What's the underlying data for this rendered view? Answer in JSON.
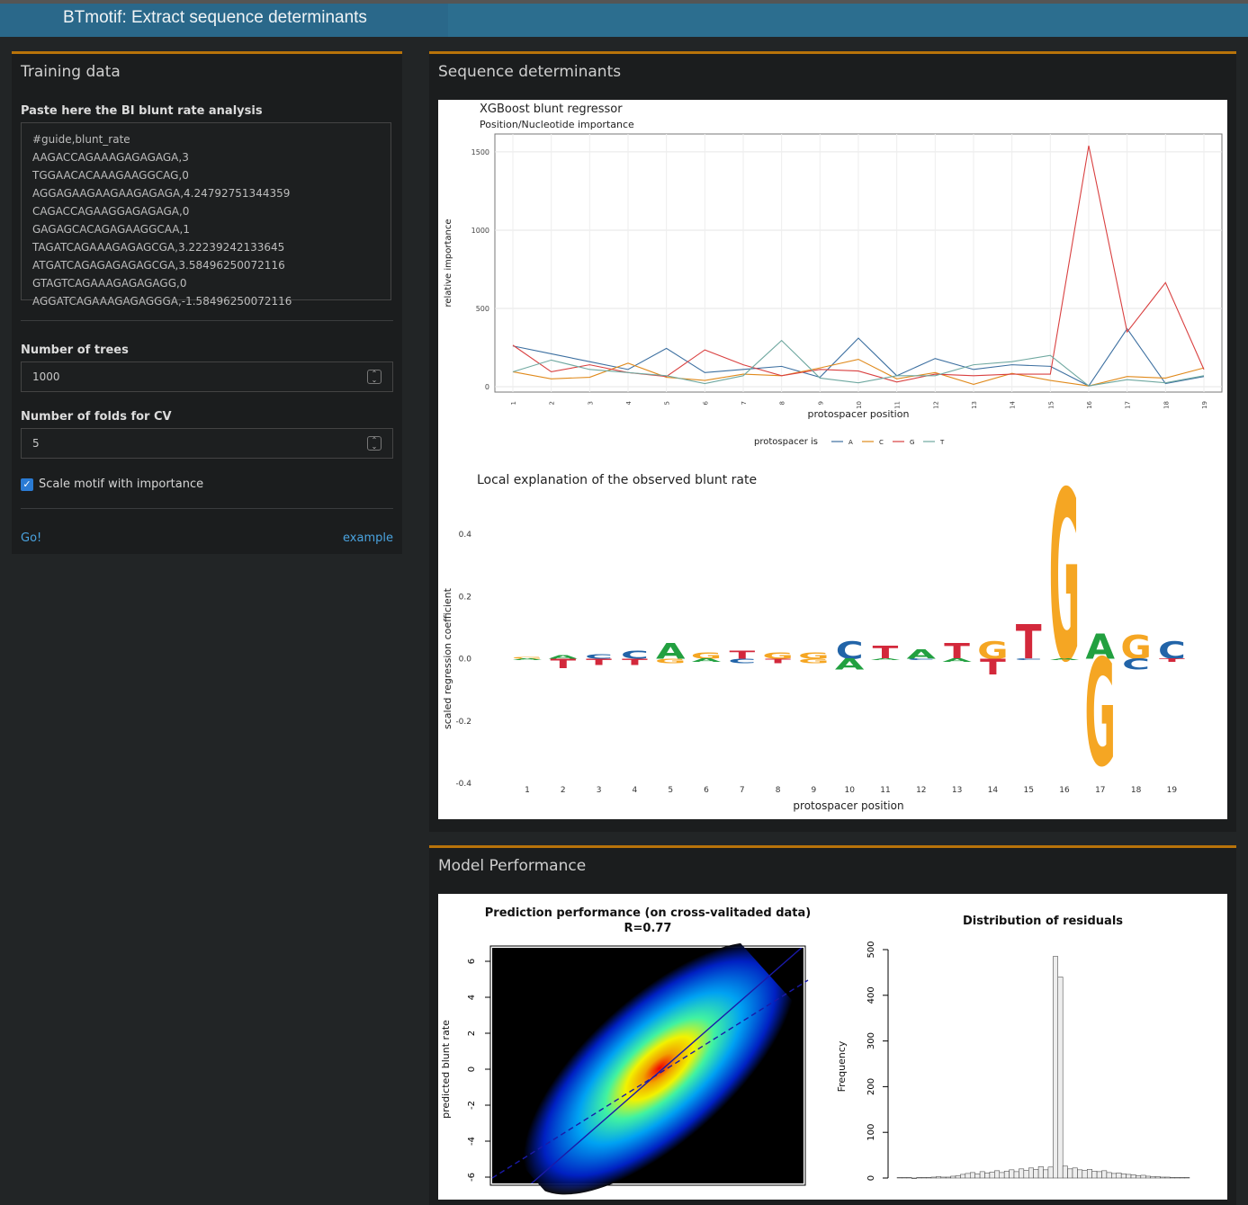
{
  "app": {
    "title": "BTmotif: Extract sequence determinants"
  },
  "sidebar": {
    "title": "Training data",
    "paste_label": "Paste here the BI blunt rate analysis",
    "textarea_lines": [
      "#guide,blunt_rate",
      "AAGACCAGAAAGAGAGAGA,3",
      "TGGAACACAAAGAAGGCAG,0",
      "AGGAGAAGAAGAAGAGAGA,4.24792751344359",
      "CAGACCAGAAGGAGAGAGA,0",
      "GAGAGCACAGAGAAGGCAA,1",
      "TAGATCAGAAAGAGAGCGA,3.22239242133645",
      "ATGATCAGAGAGAGAGCGA,3.58496250072116",
      "GTAGTCAGAAAGAGAGAGG,0",
      "AGGATCAGAAAGAGAGGGA,-1.58496250072116"
    ],
    "trees_label": "Number of trees",
    "trees_value": "1000",
    "folds_label": "Number of folds for CV",
    "folds_value": "5",
    "scale_label": "Scale motif with importance",
    "scale_checked": true,
    "go_label": "Go!",
    "example_label": "example"
  },
  "determinants": {
    "title": "Sequence determinants",
    "importance_plot": {
      "title": "XGBoost blunt regressor",
      "subtitle": "Position/Nucleotide importance",
      "ylabel": "relative importance",
      "xlabel": "protospacer position",
      "legend_title": "protospacer is",
      "yticks": [
        "0",
        "500",
        "1000",
        "1500"
      ],
      "chart_data": {
        "type": "line",
        "x": [
          1,
          2,
          3,
          4,
          5,
          6,
          7,
          8,
          9,
          10,
          11,
          12,
          13,
          14,
          15,
          16,
          17,
          18,
          19
        ],
        "ylim": [
          0,
          1580
        ],
        "series": [
          {
            "name": "A",
            "color": "#3c6fa0",
            "values": [
              260,
              210,
              160,
              110,
              245,
              90,
              110,
              130,
              60,
              310,
              70,
              180,
              110,
              140,
              130,
              5,
              370,
              20,
              65
            ]
          },
          {
            "name": "C",
            "color": "#e08a1c",
            "values": [
              95,
              50,
              60,
              150,
              60,
              40,
              80,
              70,
              120,
              175,
              50,
              90,
              15,
              85,
              40,
              5,
              65,
              55,
              120
            ]
          },
          {
            "name": "G",
            "color": "#d94040",
            "values": [
              265,
              95,
              140,
              90,
              65,
              235,
              140,
              70,
              110,
              100,
              30,
              80,
              70,
              80,
              80,
              1540,
              350,
              665,
              110
            ]
          },
          {
            "name": "T",
            "color": "#6fa8a0",
            "values": [
              95,
              170,
              110,
              90,
              70,
              20,
              70,
              295,
              55,
              25,
              70,
              70,
              140,
              160,
              200,
              5,
              45,
              25,
              70
            ]
          }
        ]
      }
    },
    "logo_plot": {
      "title": "Local explanation of the observed blunt rate",
      "ylabel": "scaled regression coefficient",
      "xlabel": "protospacer position",
      "yticks": [
        "0.4",
        "0.2",
        "0.0",
        "-0.2",
        "-0.4"
      ],
      "chart_data": {
        "type": "logo",
        "x": [
          1,
          2,
          3,
          4,
          5,
          6,
          7,
          8,
          9,
          10,
          11,
          12,
          13,
          14,
          15,
          16,
          17,
          18,
          19
        ],
        "ylim": [
          -0.4,
          0.4
        ],
        "positive": [
          "G",
          "A",
          "C",
          "C",
          "A",
          "G",
          "T",
          "G",
          "G",
          "C",
          "T",
          "A",
          "T",
          "G",
          "T",
          "G",
          "A",
          "G",
          "C"
        ],
        "positive_height": [
          0.005,
          0.01,
          0.015,
          0.025,
          0.05,
          0.02,
          0.025,
          0.02,
          0.02,
          0.055,
          0.04,
          0.03,
          0.05,
          0.055,
          0.11,
          0.54,
          0.08,
          0.075,
          0.055
        ],
        "negative": [
          "A",
          "T",
          "T",
          "T",
          "G",
          "A",
          "C",
          "T",
          "G",
          "A",
          "A",
          "C",
          "A",
          "T",
          "C",
          "A",
          "G",
          "C",
          "T"
        ],
        "negative_height": [
          0.005,
          0.03,
          0.02,
          0.02,
          0.015,
          0.01,
          0.015,
          0.015,
          0.015,
          0.035,
          0.005,
          0.005,
          0.01,
          0.05,
          0.005,
          0.005,
          0.34,
          0.035,
          0.01
        ]
      }
    }
  },
  "performance": {
    "title": "Model Performance",
    "scatter": {
      "title_line1": "Prediction performance (on cross-valitaded data)",
      "title_line2": "R=0.77",
      "ylabel": "predicted blunt rate",
      "yticks": [
        "6",
        "4",
        "2",
        "0",
        "-2",
        "-4",
        "-6"
      ]
    },
    "histogram": {
      "title": "Distribution of residuals",
      "ylabel": "Frequency",
      "yticks": [
        "0",
        "100",
        "200",
        "300",
        "400",
        "500"
      ],
      "chart_data": {
        "type": "bar",
        "ylim": [
          0,
          500
        ],
        "values": [
          1,
          1,
          1,
          0,
          1,
          1,
          1,
          2,
          3,
          2,
          2,
          4,
          5,
          8,
          10,
          12,
          9,
          14,
          11,
          13,
          16,
          12,
          15,
          18,
          14,
          20,
          17,
          22,
          19,
          25,
          18,
          24,
          485,
          440,
          26,
          20,
          22,
          18,
          17,
          19,
          15,
          14,
          16,
          12,
          10,
          11,
          9,
          8,
          7,
          5,
          6,
          4,
          3,
          3,
          2,
          2,
          1,
          1,
          1,
          1
        ]
      }
    }
  }
}
